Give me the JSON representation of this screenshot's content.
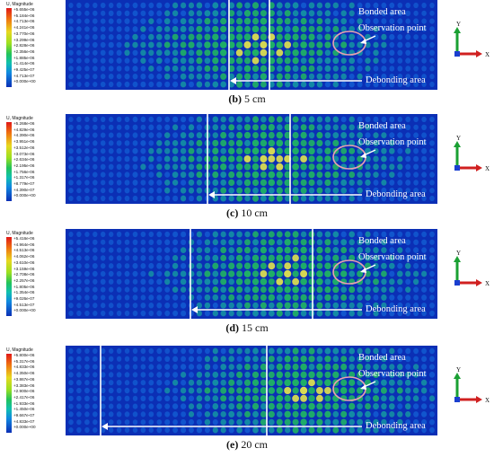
{
  "legend_title": "U, Magnitude",
  "annotations": {
    "bonded": "Bonded area",
    "observation": "Observation point",
    "debonding": "Debonding area"
  },
  "axes": {
    "y": "Y",
    "x": "X"
  },
  "colors": {
    "blue": "#0b2fb5",
    "green": "#22c35a",
    "yellow": "#e8e84a",
    "red": "#e01818"
  },
  "panels": [
    {
      "legend": [
        "+5.655e-06",
        "+5.184e-06",
        "+4.713e-06",
        "+4.241e-06",
        "+3.770e-06",
        "+3.299e-06",
        "+2.828e-06",
        "+2.356e-06",
        "+1.885e-06",
        "+1.414e-06",
        "+9.425e-07",
        "+4.713e-07",
        "+0.000e+00"
      ],
      "caption_letter": "(b)",
      "caption_text": " 5 cm"
    },
    {
      "legend": [
        "+5.268e-06",
        "+4.829e-06",
        "+4.390e-06",
        "+3.951e-06",
        "+3.512e-06",
        "+3.073e-06",
        "+2.634e-06",
        "+2.195e-06",
        "+1.756e-06",
        "+1.317e-06",
        "+8.779e-07",
        "+4.390e-07",
        "+0.000e+00"
      ],
      "caption_letter": "(c)",
      "caption_text": " 10 cm"
    },
    {
      "legend": [
        "+5.416e-06",
        "+4.964e-06",
        "+4.513e-06",
        "+4.062e-06",
        "+3.610e-06",
        "+3.159e-06",
        "+2.708e-06",
        "+2.257e-06",
        "+1.805e-06",
        "+1.354e-06",
        "+9.026e-07",
        "+4.513e-07",
        "+0.000e+00"
      ],
      "caption_letter": "(d)",
      "caption_text": " 15 cm"
    },
    {
      "legend": [
        "+5.800e-06",
        "+5.317e-06",
        "+4.833e-06",
        "+4.350e-06",
        "+3.867e-06",
        "+3.383e-06",
        "+2.900e-06",
        "+2.417e-06",
        "+1.933e-06",
        "+1.450e-06",
        "+9.667e-07",
        "+4.833e-07",
        "+0.000e+00"
      ],
      "caption_letter": "(e)",
      "caption_text": " 20 cm"
    }
  ]
}
